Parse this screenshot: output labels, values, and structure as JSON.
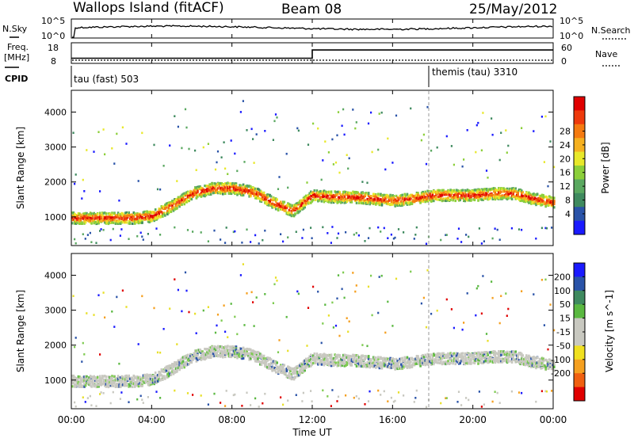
{
  "header": {
    "station": "Wallops Island (fitACF)",
    "beam": "Beam 08",
    "date": "25/May/2012"
  },
  "top_panel": {
    "left_label": "N.Sky",
    "left_ticks": [
      "10^5",
      "10^0"
    ],
    "right_label": "N.Search",
    "right_ticks": [
      "10^5",
      "10^0"
    ]
  },
  "freq_panel": {
    "left_label_1": "Freq.",
    "left_label_2": "[MHz]",
    "left_ticks": [
      "18",
      "8"
    ],
    "right_label": "Nave",
    "right_ticks": [
      "60",
      "0"
    ]
  },
  "cpid_panel": {
    "label": "CPID",
    "programs": [
      {
        "name": "tau (fast) 503",
        "start_hour": 0
      },
      {
        "name": "themis (tau) 3310",
        "start_hour": 18
      }
    ]
  },
  "x_axis": {
    "title": "Time UT",
    "tick_labels": [
      "00:00",
      "04:00",
      "08:00",
      "12:00",
      "16:00",
      "20:00",
      "00:00"
    ]
  },
  "power_panel": {
    "ylabel": "Slant Range [km]",
    "y_ticks": [
      "1000",
      "2000",
      "3000",
      "4000"
    ],
    "colorbar_label": "Power [dB]",
    "colorbar_ticks": [
      "4",
      "8",
      "12",
      "16",
      "20",
      "24",
      "28"
    ],
    "colorbar_colors": [
      "#1a1aff",
      "#2a53a8",
      "#3f8a5f",
      "#5aa860",
      "#8ccf3a",
      "#e8e82a",
      "#f5b020",
      "#f57a10",
      "#ee3a0c",
      "#e00000"
    ]
  },
  "velocity_panel": {
    "ylabel": "Slant Range [km]",
    "y_ticks": [
      "1000",
      "2000",
      "3000",
      "4000"
    ],
    "colorbar_label": "Velocity [m s^-1]",
    "colorbar_ticks": [
      "200",
      "100",
      "50",
      "15",
      "-15",
      "-50",
      "-100",
      "-200"
    ],
    "colorbar_colors": [
      "#1a1aff",
      "#2a53a8",
      "#3f8a5f",
      "#5ab840",
      "#c8c8c0",
      "#c8c8c0",
      "#f0e020",
      "#f5a020",
      "#f06010",
      "#e00000"
    ]
  },
  "chart_data": {
    "type": "heatmap",
    "x_range_hours": [
      0,
      24
    ],
    "y_range_km": [
      180,
      4600
    ],
    "frequency_mhz": [
      {
        "start_hour": 0,
        "end_hour": 12,
        "value": 10.5
      },
      {
        "start_hour": 12,
        "end_hour": 24,
        "value": 14.5
      }
    ],
    "nave": [
      {
        "start_hour": 0,
        "end_hour": 24,
        "value": 0
      }
    ],
    "main_echo_band": [
      {
        "hour": 0,
        "range_km": 1000
      },
      {
        "hour": 1,
        "range_km": 1000
      },
      {
        "hour": 2,
        "range_km": 1000
      },
      {
        "hour": 3,
        "range_km": 1000
      },
      {
        "hour": 4,
        "range_km": 1050
      },
      {
        "hour": 5,
        "range_km": 1350
      },
      {
        "hour": 6,
        "range_km": 1700
      },
      {
        "hour": 7,
        "range_km": 1850
      },
      {
        "hour": 8,
        "range_km": 1850
      },
      {
        "hour": 9,
        "range_km": 1750
      },
      {
        "hour": 10,
        "range_km": 1450
      },
      {
        "hour": 11,
        "range_km": 1200
      },
      {
        "hour": 12,
        "range_km": 1650
      },
      {
        "hour": 13,
        "range_km": 1600
      },
      {
        "hour": 14,
        "range_km": 1600
      },
      {
        "hour": 15,
        "range_km": 1550
      },
      {
        "hour": 16,
        "range_km": 1500
      },
      {
        "hour": 17,
        "range_km": 1550
      },
      {
        "hour": 18,
        "range_km": 1650
      },
      {
        "hour": 19,
        "range_km": 1650
      },
      {
        "hour": 20,
        "range_km": 1650
      },
      {
        "hour": 21,
        "range_km": 1700
      },
      {
        "hour": 22,
        "range_km": 1700
      },
      {
        "hour": 23,
        "range_km": 1550
      },
      {
        "hour": 24,
        "range_km": 1450
      }
    ]
  }
}
